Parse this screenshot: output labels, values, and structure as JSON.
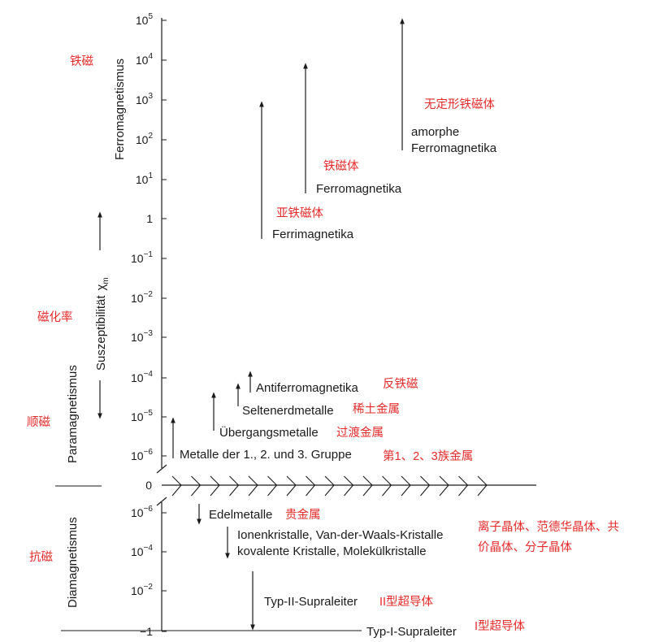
{
  "ticks_upper": [
    {
      "base": "10",
      "exp": "5"
    },
    {
      "base": "10",
      "exp": "4"
    },
    {
      "base": "10",
      "exp": "3"
    },
    {
      "base": "10",
      "exp": "2"
    },
    {
      "base": "10",
      "exp": "1"
    },
    {
      "base": "1",
      "exp": ""
    },
    {
      "base": "10",
      "exp": "−1"
    },
    {
      "base": "10",
      "exp": "−2"
    },
    {
      "base": "10",
      "exp": "−3"
    },
    {
      "base": "10",
      "exp": "−4"
    },
    {
      "base": "10",
      "exp": "−5"
    },
    {
      "base": "10",
      "exp": "−6"
    }
  ],
  "tick_zero": "0",
  "ticks_lower": [
    {
      "base": "10",
      "exp": "−6"
    },
    {
      "base": "10",
      "exp": "−4"
    },
    {
      "base": "10",
      "exp": "−2"
    },
    {
      "base": "−1",
      "exp": ""
    }
  ],
  "axis_title": "Suszeptibilität",
  "axis_symbol": "χ",
  "axis_symbol_sub": "m",
  "regions": {
    "ferro": "Ferromagnetismus",
    "para": "Paramagnetismus",
    "dia": "Diamagnetismus"
  },
  "regions_zh": {
    "ferro": "铁磁",
    "susceptibility": "磁化率",
    "para": "顺磁",
    "dia": "抗磁"
  },
  "materials": {
    "amorph_1": "amorphe",
    "amorph_2": "Ferromagnetika",
    "amorph_zh": "无定形铁磁体",
    "ferro": "Ferromagnetika",
    "ferro_zh": "铁磁体",
    "ferri": "Ferrimagnetika",
    "ferri_zh": "亚铁磁体",
    "antiferro": "Antiferromagnetika",
    "antiferro_zh": "反铁磁",
    "selten": "Seltenerdmetalle",
    "selten_zh": "稀土金属",
    "uebergang": "Übergangsmetalle",
    "uebergang_zh": "过渡金属",
    "gruppe": "Metalle der 1., 2. und 3. Gruppe",
    "gruppe_zh": "第1、2、3族金属",
    "edel": "Edelmetalle",
    "edel_zh": "贵金属",
    "ionen_1": "Ionenkristalle, Van-der-Waals-Kristalle",
    "ionen_2": "kovalente Kristalle, Molekülkristalle",
    "ionen_zh_1": "离子晶体、范德华晶体、共",
    "ionen_zh_2": "价晶体、分子晶体",
    "typ2": "Typ-II-Supraleiter",
    "typ2_zh": "II型超导体",
    "typ1": "Typ-I-Supraleiter",
    "typ1_zh": "I型超导体"
  },
  "colors": {
    "ink": "#1a1a1a",
    "annotation": "#e52b2b"
  }
}
